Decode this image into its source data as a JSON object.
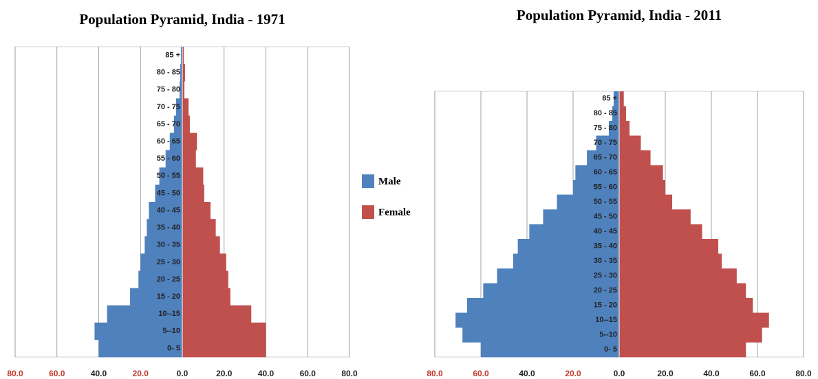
{
  "chart_data": [
    {
      "type": "pyramid",
      "title": "Population Pyramid, India - 1971",
      "categories": [
        "0- 5",
        "5--10",
        "10--15",
        "15 - 20",
        "20 - 25",
        "25 - 30",
        "30 - 35",
        "35 - 40",
        "40 - 45",
        "45 - 50",
        "50 - 55",
        "55 - 60",
        "60 - 65",
        "65 - 70",
        "70 - 75",
        "75 - 80",
        "80 - 85",
        "85 +"
      ],
      "series": [
        {
          "name": "Male",
          "color": "#4f81bd",
          "side": "left",
          "values": [
            40,
            42,
            36,
            25,
            21,
            20,
            18,
            17,
            16,
            13,
            11,
            8,
            6,
            4,
            3,
            1.3,
            1,
            0.7
          ]
        },
        {
          "name": "Female",
          "color": "#c0504d",
          "side": "right",
          "values": [
            40,
            40,
            33,
            23,
            22,
            21,
            18,
            16,
            13.5,
            10.5,
            10,
            6.5,
            7,
            3.6,
            3,
            1,
            1.3,
            0.7
          ]
        }
      ],
      "xlim": [
        -80,
        80
      ],
      "xticks": [
        {
          "value": -80,
          "label": "80.0"
        },
        {
          "value": -60,
          "label": "60.0"
        },
        {
          "value": -40,
          "label": "40.0"
        },
        {
          "value": -20,
          "label": "20.0"
        },
        {
          "value": 0,
          "label": "0.0"
        },
        {
          "value": 20,
          "label": "20.0"
        },
        {
          "value": 40,
          "label": "40.0"
        },
        {
          "value": 60,
          "label": "60.0"
        },
        {
          "value": 80,
          "label": "80.0"
        }
      ],
      "grid": true
    },
    {
      "type": "pyramid",
      "title": "Population Pyramid, India - 2011",
      "categories": [
        "0- 5",
        "5--10",
        "10--15",
        "15 - 20",
        "20 - 25",
        "25 - 30",
        "30 - 35",
        "35 - 40",
        "40 - 45",
        "45 - 50",
        "50 - 55",
        "55 - 60",
        "60 - 65",
        "65 - 70",
        "70 - 75",
        "75 - 80",
        "80 - 85",
        "85 +"
      ],
      "series": [
        {
          "color": "#4f81bd",
          "side": "left",
          "values": [
            60,
            68,
            71,
            66,
            59,
            53,
            46,
            44,
            39,
            33,
            27,
            20,
            19,
            14,
            10,
            4.5,
            3,
            2.4
          ]
        },
        {
          "color": "#c0504d",
          "side": "right",
          "values": [
            55,
            62,
            65,
            58,
            55,
            51,
            44.5,
            43,
            36,
            31,
            23,
            20,
            19,
            13.6,
            9.4,
            4.5,
            3,
            2
          ]
        }
      ],
      "xlim": [
        -80,
        80
      ],
      "xticks": [
        {
          "value": -80,
          "label": "80.0"
        },
        {
          "value": -60,
          "label": "60.0"
        },
        {
          "value": -40,
          "label": "40.0"
        },
        {
          "value": -20,
          "label": "20.0"
        },
        {
          "value": 0,
          "label": "0.0"
        },
        {
          "value": 20,
          "label": "20.0"
        },
        {
          "value": 40,
          "label": "40.0"
        },
        {
          "value": 60,
          "label": "60.0"
        },
        {
          "value": 80,
          "label": "80.0"
        }
      ],
      "grid": true
    }
  ]
}
